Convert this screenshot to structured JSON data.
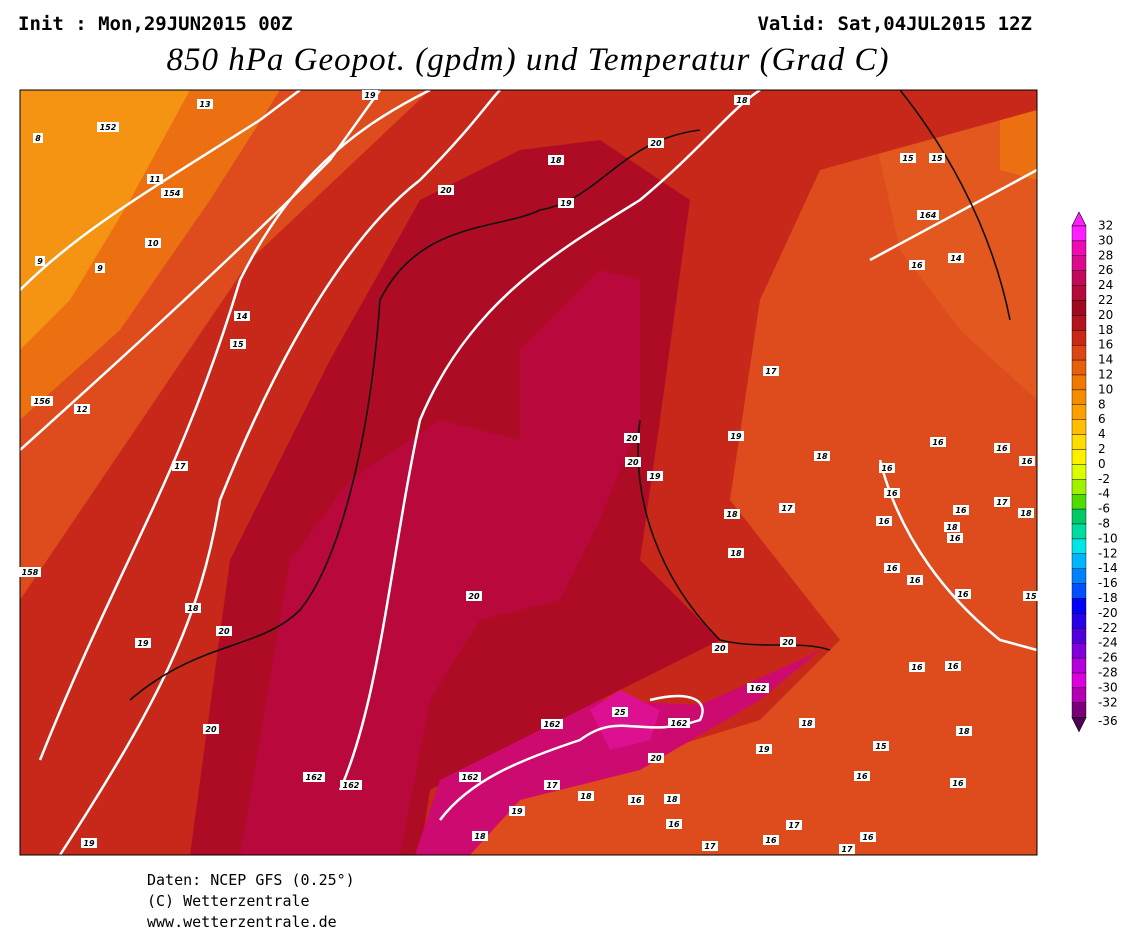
{
  "header": {
    "init": "Init : Mon,29JUN2015 00Z",
    "valid": "Valid: Sat,04JUL2015 12Z",
    "title": "850 hPa Geopot. (gpdm) und Temperatur (Grad C)"
  },
  "map": {
    "labels": [
      "13",
      "19",
      "18",
      "152",
      "8",
      "20",
      "18",
      "15",
      "15",
      "11",
      "154",
      "20",
      "19",
      "164",
      "10",
      "9",
      "9",
      "16",
      "14",
      "14",
      "15",
      "17",
      "156",
      "12",
      "20",
      "19",
      "16",
      "16",
      "20",
      "19",
      "18",
      "16",
      "16",
      "17",
      "16",
      "18",
      "17",
      "16",
      "16",
      "17",
      "18",
      "18",
      "16",
      "158",
      "18",
      "16",
      "16",
      "16",
      "15",
      "20",
      "18",
      "20",
      "19",
      "20",
      "20",
      "16",
      "16",
      "162",
      "25",
      "162",
      "162",
      "18",
      "19",
      "18",
      "20",
      "20",
      "15",
      "162",
      "162",
      "162",
      "17",
      "16",
      "18",
      "16",
      "18",
      "16",
      "19",
      "16",
      "17",
      "16",
      "16",
      "17",
      "17",
      "18",
      "19"
    ]
  },
  "legend": {
    "labels": [
      "32",
      "30",
      "28",
      "26",
      "24",
      "22",
      "20",
      "18",
      "16",
      "14",
      "12",
      "10",
      "8",
      "6",
      "4",
      "2",
      "0",
      "-2",
      "-4",
      "-6",
      "-8",
      "-10",
      "-12",
      "-14",
      "-16",
      "-18",
      "-20",
      "-22",
      "-24",
      "-26",
      "-28",
      "-30",
      "-32",
      "-36"
    ],
    "colors": [
      "#ff1eff",
      "#f00ab4",
      "#dc0a8c",
      "#c30a5a",
      "#b40a3c",
      "#a00a1e",
      "#b4141e",
      "#c82814",
      "#dc4614",
      "#e6600a",
      "#f07800",
      "#f58c00",
      "#faa000",
      "#ffbe00",
      "#ffdc00",
      "#fff000",
      "#dcff00",
      "#a0f000",
      "#50dc00",
      "#00c864",
      "#00dca0",
      "#00e6e6",
      "#00b4ff",
      "#0082ff",
      "#0050ff",
      "#0000ff",
      "#2800e6",
      "#5000dc",
      "#8200dc",
      "#b400dc",
      "#dc00dc",
      "#b400b4",
      "#780078"
    ]
  },
  "footer": {
    "source": "Daten: NCEP GFS (0.25°)",
    "copyright": "(C) Wetterzentrale",
    "url": "www.wetterzentrale.de"
  }
}
